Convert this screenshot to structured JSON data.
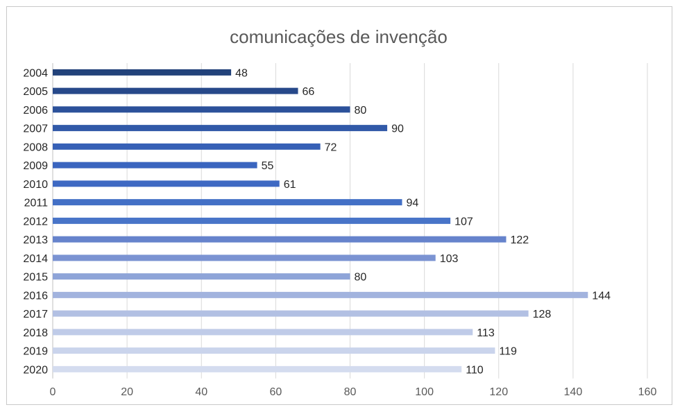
{
  "chart_data": {
    "type": "bar",
    "orientation": "horizontal",
    "title": "comunicações de invenção",
    "xlabel": "",
    "ylabel": "",
    "xlim": [
      0,
      160
    ],
    "xticks": [
      "0",
      "20",
      "40",
      "60",
      "80",
      "100",
      "120",
      "140",
      "160"
    ],
    "grid": true,
    "legend": "none",
    "categories": [
      "2004",
      "2005",
      "2006",
      "2007",
      "2008",
      "2009",
      "2010",
      "2011",
      "2012",
      "2013",
      "2014",
      "2015",
      "2016",
      "2017",
      "2018",
      "2019",
      "2020"
    ],
    "values": [
      48,
      66,
      80,
      90,
      72,
      55,
      61,
      94,
      107,
      122,
      103,
      80,
      144,
      128,
      113,
      119,
      110
    ],
    "colors": [
      "#22427a",
      "#27498a",
      "#2c519a",
      "#3159a8",
      "#3660b6",
      "#3a65bf",
      "#3e69c3",
      "#4370c6",
      "#4874c8",
      "#6683cc",
      "#7b93d2",
      "#8ea4d8",
      "#a2b3de",
      "#b2c0e3",
      "#bfcbe8",
      "#cad4ec",
      "#d4dcef"
    ]
  }
}
